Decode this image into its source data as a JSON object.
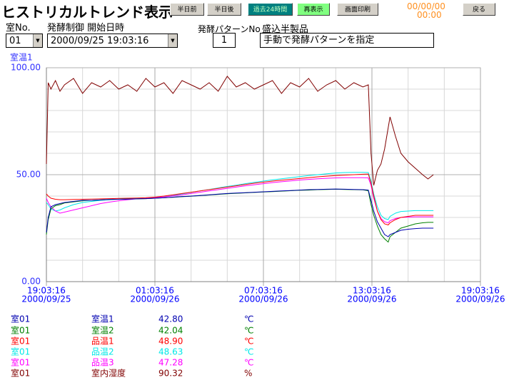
{
  "header": {
    "title": "ヒストリカルトレンド表示",
    "buttons": [
      "半日前",
      "半日後",
      "過去24時間",
      "再表示",
      "画面印刷",
      "戻る"
    ],
    "date": "00/00/00",
    "time": "00:00"
  },
  "form": {
    "room_label": "室No.",
    "start_label": "発酵制御 開始日時",
    "room": "01",
    "start": "2000/09/25 19:03:16",
    "pattern_label": "発酵パターンNo",
    "pattern": "1",
    "product_label": "盛込半製品",
    "product": "手動で発酵パターンを指定"
  },
  "chart_data": {
    "type": "line",
    "y_label": "室温1",
    "xlim": [
      0,
      24
    ],
    "xticks": [
      {
        "value": 0,
        "label": "19:03:16",
        "date": "2000/09/25"
      },
      {
        "value": 6,
        "label": "01:03:16",
        "date": "2000/09/26"
      },
      {
        "value": 12,
        "label": "07:03:16",
        "date": "2000/09/26"
      },
      {
        "value": 18,
        "label": "13:03:16",
        "date": "2000/09/26"
      },
      {
        "value": 24,
        "label": "19:03:16",
        "date": "2000/09/26"
      }
    ],
    "xminor": [
      2,
      4,
      8,
      10,
      14,
      16,
      20,
      22
    ],
    "ylim": [
      0,
      100
    ],
    "yticks": [
      {
        "value": 0,
        "label": "0.00"
      },
      {
        "value": 50,
        "label": "50.00"
      },
      {
        "value": 100,
        "label": "100.00"
      }
    ],
    "yminor": [
      10,
      20,
      30,
      40,
      60,
      70,
      80,
      90
    ],
    "x": [
      0,
      0.1,
      0.25,
      0.5,
      0.75,
      1,
      1.5,
      2,
      2.5,
      3,
      3.5,
      4,
      4.5,
      5,
      5.5,
      6,
      6.5,
      7,
      7.5,
      8,
      8.5,
      9,
      9.5,
      10,
      10.5,
      11,
      11.5,
      12,
      12.5,
      13,
      13.5,
      14,
      14.5,
      15,
      15.5,
      16,
      16.5,
      17,
      17.5,
      17.8,
      17.95,
      18.1,
      18.3,
      18.5,
      18.7,
      18.9,
      19.0,
      19.3,
      19.6,
      20,
      20.4,
      20.8,
      21.1,
      21.4
    ],
    "series": [
      {
        "name": "室内湿度",
        "color": "#800000",
        "values": [
          55,
          93,
          90,
          94,
          89,
          92,
          95,
          88,
          93,
          91,
          94,
          90,
          92,
          89,
          95,
          91,
          93,
          88,
          94,
          92,
          90,
          93,
          89,
          96,
          91,
          93,
          90,
          92,
          94,
          88,
          93,
          91,
          95,
          89,
          92,
          94,
          90,
          93,
          91,
          92,
          60,
          45,
          52,
          55,
          62,
          72,
          77,
          68,
          60,
          56,
          53,
          50,
          48,
          50
        ]
      },
      {
        "name": "品温2",
        "color": "#00e8e8",
        "values": [
          37,
          36,
          34,
          33,
          33.5,
          34.5,
          36,
          37,
          37.5,
          38,
          38.3,
          38.6,
          38.8,
          39,
          39.1,
          39.3,
          39.7,
          40.3,
          41,
          41.7,
          42.4,
          43.1,
          43.8,
          44.5,
          45.1,
          45.8,
          46.4,
          47,
          47.6,
          48.1,
          48.6,
          49.1,
          49.6,
          50,
          50.4,
          50.8,
          51,
          51.1,
          51.1,
          51,
          47,
          41,
          35,
          31,
          29.5,
          29,
          30.5,
          32,
          32.8,
          33,
          33.2,
          33.2,
          33.2,
          33.2
        ]
      },
      {
        "name": "品温3",
        "color": "#ff00ff",
        "values": [
          39,
          37,
          35,
          33,
          32,
          32.5,
          33.5,
          34.5,
          35.5,
          36.5,
          37.2,
          37.8,
          38.3,
          38.7,
          39,
          39.2,
          39.6,
          40.1,
          40.6,
          41.2,
          41.8,
          42.4,
          43,
          43.6,
          44.2,
          44.8,
          45.3,
          45.8,
          46.3,
          46.7,
          47.1,
          47.5,
          47.8,
          48.1,
          48.3,
          48.5,
          48.6,
          48.6,
          48.6,
          48.5,
          45,
          39,
          33,
          29.5,
          28,
          27.5,
          28.5,
          29.5,
          30,
          30.2,
          30.3,
          30.3,
          30.3,
          30.3
        ]
      },
      {
        "name": "品温1",
        "color": "#ff0000",
        "values": [
          41,
          40,
          39,
          38.5,
          38.3,
          38.3,
          38.4,
          38.5,
          38.6,
          38.7,
          38.8,
          38.9,
          39,
          39.1,
          39.2,
          39.5,
          40,
          40.6,
          41.2,
          41.8,
          42.4,
          43,
          43.6,
          44.2,
          44.8,
          45.4,
          46,
          46.5,
          47,
          47.4,
          47.8,
          48.2,
          48.6,
          49,
          49.3,
          49.6,
          49.8,
          50,
          50.2,
          50.3,
          46,
          40,
          33,
          29,
          27,
          26.5,
          27.5,
          29,
          30,
          30.5,
          31,
          31,
          31,
          31
        ]
      },
      {
        "name": "室温2",
        "color": "#008000",
        "values": [
          22,
          29,
          34,
          35.5,
          36,
          36.8,
          37.3,
          37.8,
          38,
          38.2,
          38.4,
          38.5,
          38.6,
          38.7,
          38.8,
          39,
          39.2,
          39.4,
          39.7,
          39.9,
          40.2,
          40.5,
          40.8,
          41.1,
          41.3,
          41.5,
          41.7,
          41.9,
          42.1,
          42.3,
          42.5,
          42.7,
          42.8,
          43,
          43.1,
          43.2,
          43.1,
          43,
          42.9,
          42.5,
          36,
          31,
          26,
          22,
          20,
          18.5,
          21,
          23,
          25,
          26,
          27,
          27.5,
          27.7,
          27.7
        ]
      },
      {
        "name": "室温1",
        "color": "#0000b0",
        "values": [
          23,
          30,
          35,
          36,
          36.5,
          37,
          37.5,
          38,
          38,
          38.2,
          38.4,
          38.5,
          38.6,
          38.7,
          38.8,
          39,
          39.2,
          39.5,
          39.8,
          40,
          40.3,
          40.6,
          40.9,
          41.2,
          41.4,
          41.6,
          41.8,
          42,
          42.2,
          42.4,
          42.6,
          42.8,
          43,
          43.1,
          43.2,
          43.3,
          43.2,
          43.1,
          43,
          42.8,
          38,
          33,
          28,
          25,
          22,
          21,
          22,
          23,
          24,
          24.5,
          24.8,
          25,
          25,
          25
        ]
      }
    ]
  },
  "legend": {
    "rows": [
      {
        "room": "室01",
        "series": 5,
        "value": "42.80",
        "unit": "℃"
      },
      {
        "room": "室01",
        "series": 4,
        "value": "42.04",
        "unit": "℃"
      },
      {
        "room": "室01",
        "series": 3,
        "value": "48.90",
        "unit": "℃"
      },
      {
        "room": "室01",
        "series": 1,
        "value": "48.63",
        "unit": "℃"
      },
      {
        "room": "室01",
        "series": 2,
        "value": "47.28",
        "unit": "℃"
      },
      {
        "room": "室01",
        "series": 0,
        "value": "90.32",
        "unit": "%"
      }
    ]
  }
}
